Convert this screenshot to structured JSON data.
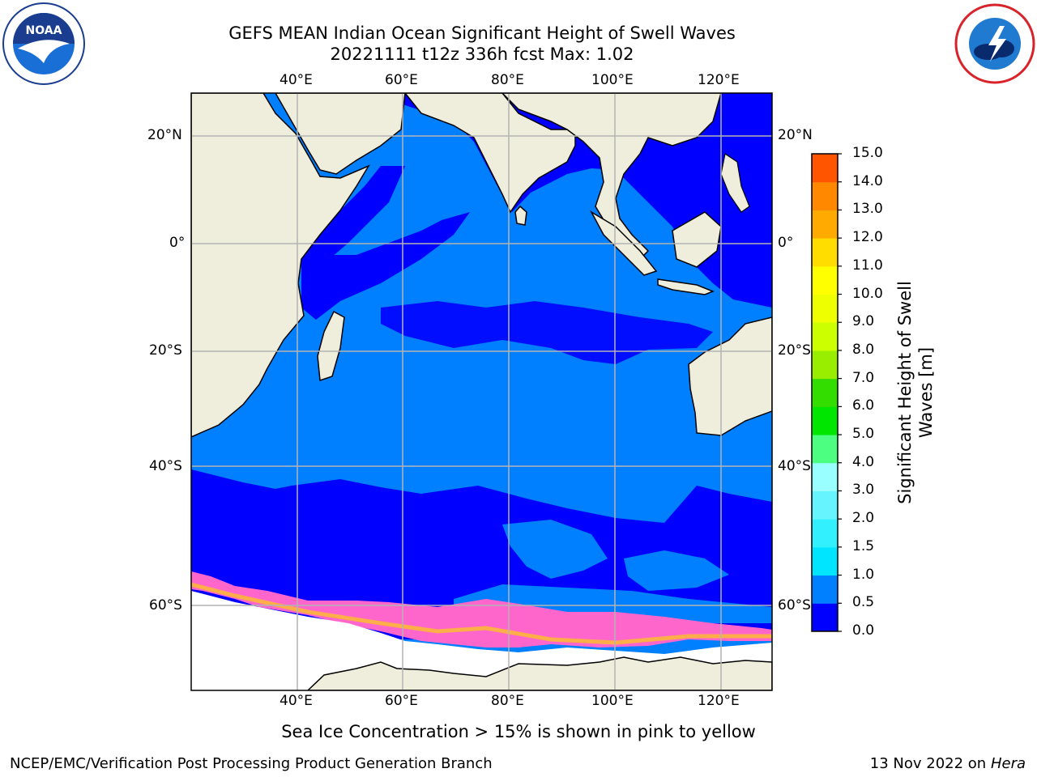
{
  "title": {
    "line1": "GEFS MEAN Indian Ocean Significant Height of Swell Waves",
    "line2": "20221111 t12z 336h fcst   Max: 1.02"
  },
  "logos": {
    "left": "noaa-logo",
    "right": "nws-logo"
  },
  "axes": {
    "lon_labels": [
      "40°E",
      "60°E",
      "80°E",
      "100°E",
      "120°E"
    ],
    "lat_labels": [
      "20°N",
      "0°",
      "20°S",
      "40°S",
      "60°S"
    ],
    "lon_range": [
      20,
      130
    ],
    "lat_range": [
      -72,
      28
    ],
    "grid": true
  },
  "colorbar": {
    "label": "Significant Height of Swell Waves [m]",
    "ticks": [
      "0.0",
      "0.5",
      "1.0",
      "1.5",
      "2.0",
      "3.0",
      "4.0",
      "5.0",
      "6.0",
      "7.0",
      "8.0",
      "9.0",
      "10.0",
      "11.0",
      "12.0",
      "13.0",
      "14.0",
      "15.0"
    ],
    "colors": [
      "#0000ff",
      "#0080ff",
      "#00e5ff",
      "#33f0ff",
      "#66f5ff",
      "#99ffff",
      "#4dff80",
      "#00e600",
      "#33dd00",
      "#99ee00",
      "#ccff00",
      "#eeff00",
      "#ffff00",
      "#ffdd00",
      "#ffaa00",
      "#ff8800",
      "#ff5500",
      "#ff2200",
      "#ff0000"
    ]
  },
  "colors": {
    "land": "#efeddc",
    "ocean_low": "#0000ff",
    "ocean_mid": "#0080ff",
    "sea_ice": "#ff66cc",
    "sea_ice_edge": "#ffbb33",
    "ice_shelf": "#ffffff",
    "grid": "#b4b4b4"
  },
  "footer": {
    "caption": "Sea Ice Concentration > 15% is shown in pink to yellow",
    "credit": "NCEP/EMC/Verification Post Processing Product Generation Branch",
    "date": "13 Nov 2022 on",
    "host": "Hera"
  }
}
